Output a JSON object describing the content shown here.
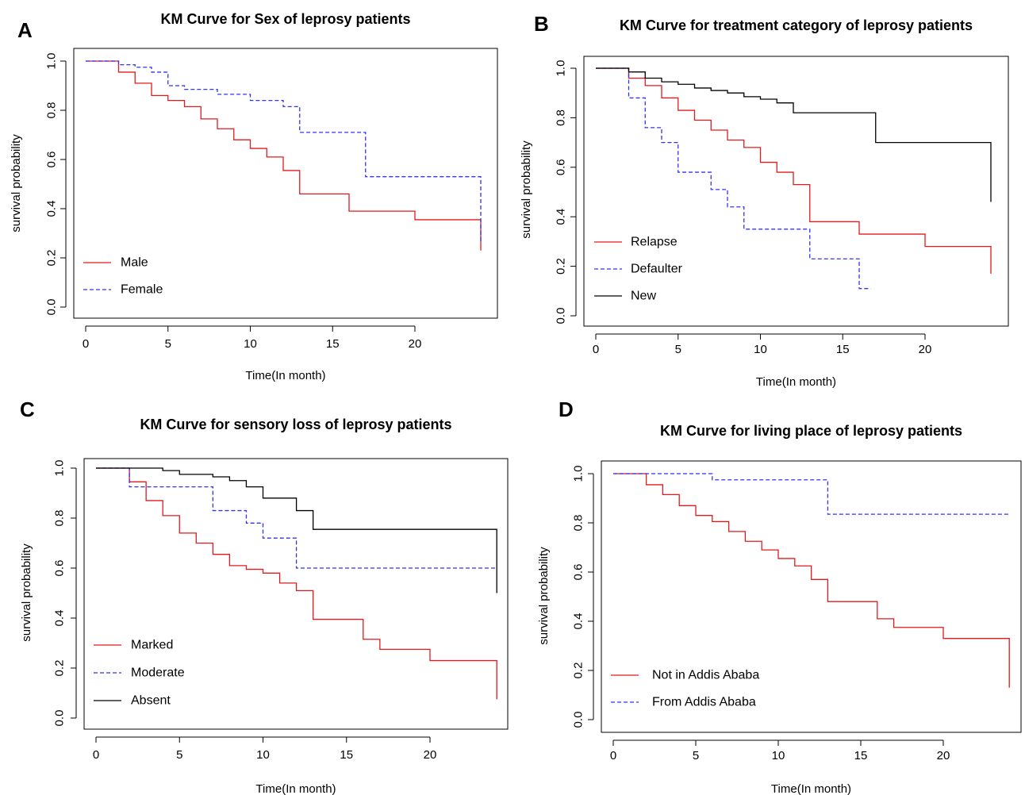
{
  "chart_data": [
    {
      "type": "line",
      "panel": "A",
      "title": "KM Curve for Sex of leprosy patients",
      "xlabel": "Time(In month)",
      "ylabel": "survival probability",
      "xlim": [
        0,
        24
      ],
      "ylim": [
        0,
        1
      ],
      "xticks": [
        "0",
        "5",
        "10",
        "15",
        "20"
      ],
      "yticks": [
        "0.0",
        "0.2",
        "0.4",
        "0.6",
        "0.8",
        "1.0"
      ],
      "legend": "bottom-left",
      "grid": false,
      "series": [
        {
          "name": "Male",
          "color": "#e31a1c",
          "dash": "solid",
          "x": [
            0,
            2,
            3,
            4,
            5,
            6,
            7,
            8,
            9,
            10,
            11,
            12,
            13,
            16,
            20,
            24
          ],
          "y": [
            1.0,
            0.955,
            0.91,
            0.86,
            0.84,
            0.815,
            0.765,
            0.725,
            0.68,
            0.645,
            0.61,
            0.555,
            0.46,
            0.39,
            0.355,
            0.23
          ]
        },
        {
          "name": "Female",
          "color": "#3333ee",
          "dash": "dashed",
          "x": [
            0,
            2,
            3,
            4,
            5,
            6,
            8,
            10,
            12,
            13,
            17,
            24
          ],
          "y": [
            1.0,
            0.985,
            0.975,
            0.955,
            0.9,
            0.885,
            0.865,
            0.84,
            0.815,
            0.71,
            0.53,
            0.26
          ]
        }
      ]
    },
    {
      "type": "line",
      "panel": "B",
      "title": "KM Curve for treatment category of leprosy patients",
      "xlabel": "Time(In month)",
      "ylabel": "survival probability",
      "xlim": [
        0,
        24
      ],
      "ylim": [
        0,
        1
      ],
      "xticks": [
        "0",
        "5",
        "10",
        "15",
        "20"
      ],
      "yticks": [
        "0.0",
        "0.2",
        "0.4",
        "0.6",
        "0.8",
        "1.0"
      ],
      "legend": "bottom-left",
      "grid": false,
      "series": [
        {
          "name": "Relapse",
          "color": "#e31a1c",
          "dash": "solid",
          "x": [
            0,
            2,
            3,
            4,
            5,
            6,
            7,
            8,
            9,
            10,
            11,
            12,
            13,
            16,
            20,
            24
          ],
          "y": [
            1.0,
            0.96,
            0.93,
            0.88,
            0.83,
            0.79,
            0.75,
            0.71,
            0.68,
            0.62,
            0.58,
            0.53,
            0.38,
            0.33,
            0.28,
            0.17
          ]
        },
        {
          "name": "Defaulter",
          "color": "#3333ee",
          "dash": "dashed",
          "x": [
            0,
            2,
            3,
            4,
            5,
            7,
            8,
            9,
            13,
            16,
            16.7
          ],
          "y": [
            1.0,
            0.88,
            0.76,
            0.7,
            0.58,
            0.51,
            0.44,
            0.35,
            0.23,
            0.11,
            0.11
          ]
        },
        {
          "name": "New",
          "color": "#000000",
          "dash": "solid",
          "x": [
            0,
            2,
            3,
            4,
            5,
            6,
            7,
            8,
            9,
            10,
            11,
            12,
            17,
            24
          ],
          "y": [
            1.0,
            0.985,
            0.96,
            0.945,
            0.935,
            0.92,
            0.91,
            0.9,
            0.885,
            0.875,
            0.86,
            0.82,
            0.7,
            0.46
          ]
        }
      ]
    },
    {
      "type": "line",
      "panel": "C",
      "title": "KM Curve for sensory loss of leprosy patients",
      "xlabel": "Time(In month)",
      "ylabel": "survival probability",
      "xlim": [
        0,
        24
      ],
      "ylim": [
        0,
        1
      ],
      "xticks": [
        "0",
        "5",
        "10",
        "15",
        "20"
      ],
      "yticks": [
        "0.0",
        "0.2",
        "0.4",
        "0.6",
        "0.8",
        "1.0"
      ],
      "legend": "bottom-left",
      "grid": false,
      "series": [
        {
          "name": "Marked",
          "color": "#e31a1c",
          "dash": "solid",
          "x": [
            0,
            2,
            3,
            4,
            5,
            6,
            7,
            8,
            9,
            10,
            11,
            12,
            13,
            16,
            17,
            20,
            24
          ],
          "y": [
            1.0,
            0.945,
            0.87,
            0.81,
            0.74,
            0.7,
            0.655,
            0.61,
            0.595,
            0.58,
            0.54,
            0.51,
            0.395,
            0.315,
            0.275,
            0.23,
            0.075
          ]
        },
        {
          "name": "Moderate",
          "color": "#3333ee",
          "dash": "dashed",
          "x": [
            0,
            2,
            7,
            9,
            10,
            12,
            24
          ],
          "y": [
            1.0,
            0.925,
            0.83,
            0.78,
            0.72,
            0.6,
            0.6
          ]
        },
        {
          "name": "Absent",
          "color": "#000000",
          "dash": "solid",
          "x": [
            0,
            4,
            5,
            7,
            8,
            9,
            10,
            12,
            13,
            24
          ],
          "y": [
            1.0,
            0.99,
            0.975,
            0.965,
            0.95,
            0.925,
            0.88,
            0.83,
            0.755,
            0.5
          ]
        }
      ]
    },
    {
      "type": "line",
      "panel": "D",
      "title": "KM Curve for living place of leprosy patients",
      "xlabel": "Time(In month)",
      "ylabel": "survival probability",
      "xlim": [
        0,
        24
      ],
      "ylim": [
        0,
        1
      ],
      "xticks": [
        "0",
        "5",
        "10",
        "15",
        "20"
      ],
      "yticks": [
        "0.0",
        "0.2",
        "0.4",
        "0.6",
        "0.8",
        "1.0"
      ],
      "legend": "bottom-left",
      "grid": false,
      "series": [
        {
          "name": "Not in Addis Ababa",
          "color": "#e31a1c",
          "dash": "solid",
          "x": [
            0,
            2,
            3,
            4,
            5,
            6,
            7,
            8,
            9,
            10,
            11,
            12,
            13,
            16,
            17,
            20,
            24
          ],
          "y": [
            1.0,
            0.955,
            0.915,
            0.87,
            0.83,
            0.805,
            0.765,
            0.725,
            0.69,
            0.655,
            0.625,
            0.57,
            0.48,
            0.41,
            0.375,
            0.33,
            0.13
          ]
        },
        {
          "name": "From Addis Ababa",
          "color": "#3333ee",
          "dash": "dashed",
          "x": [
            0,
            6,
            13,
            24
          ],
          "y": [
            1.0,
            0.975,
            0.835,
            0.835
          ]
        }
      ]
    }
  ]
}
